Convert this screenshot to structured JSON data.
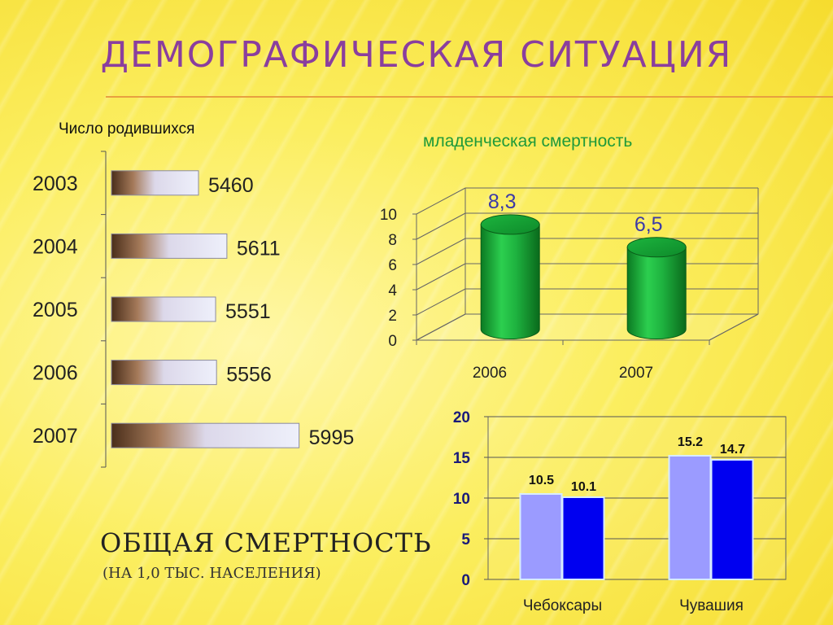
{
  "page": {
    "title": "Демографическая ситуация",
    "births_label": "Число родившихся",
    "infant_label": "младенческая смертность",
    "mortality_title": "Общая смертность",
    "mortality_subtitle": "(на 1,0 тыс. населения)"
  },
  "colors": {
    "title": "#8a3e9e",
    "infant_label": "#1f9a3a",
    "cylinder": "#1aa83a",
    "bar_light": "#9b9bff",
    "bar_dark": "#0000f0"
  },
  "chart_data": [
    {
      "type": "bar",
      "orientation": "horizontal",
      "title": "Число родившихся",
      "categories": [
        "2003",
        "2004",
        "2005",
        "2006",
        "2007"
      ],
      "values": [
        5460,
        5611,
        5551,
        5556,
        5995
      ],
      "value_labels": [
        "5460",
        "5611",
        "5551",
        "5556",
        "5995"
      ]
    },
    {
      "type": "bar",
      "style": "3d-cylinder",
      "title": "младенческая смертность",
      "categories": [
        "2006",
        "2007"
      ],
      "values": [
        8.3,
        6.5
      ],
      "value_labels": [
        "8,3",
        "6,5"
      ],
      "ylim": [
        0,
        10
      ],
      "yticks": [
        "0",
        "2",
        "4",
        "6",
        "8",
        "10"
      ],
      "grid": true
    },
    {
      "type": "bar",
      "title": "Общая смертность",
      "categories": [
        "Чебоксары",
        "Чувашия"
      ],
      "series": [
        {
          "values": [
            10.5,
            15.2
          ],
          "value_labels": [
            "10.5",
            "15.2"
          ]
        },
        {
          "values": [
            10.1,
            14.7
          ],
          "value_labels": [
            "10.1",
            "14.7"
          ]
        }
      ],
      "ylim": [
        0,
        20
      ],
      "yticks": [
        "0",
        "5",
        "10",
        "15",
        "20"
      ],
      "grid": true
    }
  ]
}
